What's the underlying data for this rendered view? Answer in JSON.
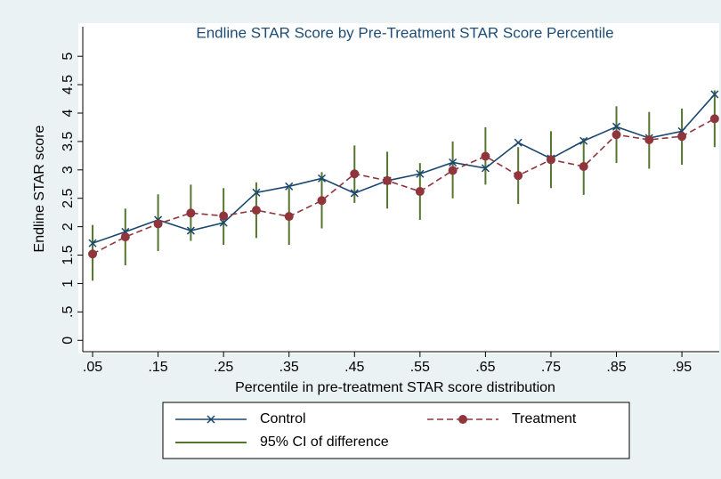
{
  "chart_data": {
    "type": "line",
    "title": "Endline STAR Score by Pre-Treatment STAR Score Percentile",
    "x_label": "Percentile in pre-treatment STAR score distribution",
    "y_label": "Endline STAR score",
    "x": [
      0.05,
      0.1,
      0.15,
      0.2,
      0.25,
      0.3,
      0.35,
      0.4,
      0.45,
      0.5,
      0.55,
      0.6,
      0.65,
      0.7,
      0.75,
      0.8,
      0.85,
      0.9,
      0.95,
      1.0
    ],
    "series": [
      {
        "name": "Control",
        "color": "#1a476f",
        "marker": "x",
        "values": [
          1.71,
          1.91,
          2.12,
          1.93,
          2.07,
          2.6,
          2.71,
          2.85,
          2.59,
          2.81,
          2.93,
          3.13,
          3.03,
          3.48,
          3.2,
          3.51,
          3.76,
          3.56,
          3.68,
          4.33
        ]
      },
      {
        "name": "Treatment",
        "color": "#90353b",
        "marker": "circle",
        "dashed": true,
        "values": [
          1.52,
          1.82,
          2.05,
          2.24,
          2.19,
          2.29,
          2.18,
          2.46,
          2.93,
          2.81,
          2.62,
          2.99,
          3.24,
          2.9,
          3.18,
          3.06,
          3.62,
          3.53,
          3.59,
          3.9
        ]
      },
      {
        "name": "95% CI of difference",
        "color": "#55752f",
        "marker": "range",
        "low": [
          1.05,
          1.32,
          1.57,
          1.75,
          1.68,
          1.8,
          1.68,
          1.97,
          2.42,
          2.32,
          2.12,
          2.5,
          2.74,
          2.4,
          2.68,
          2.56,
          3.12,
          3.02,
          3.09,
          3.4
        ],
        "high": [
          2.03,
          2.32,
          2.57,
          2.74,
          2.68,
          2.78,
          2.68,
          2.96,
          3.43,
          3.32,
          3.12,
          3.5,
          3.75,
          3.4,
          3.68,
          3.56,
          4.12,
          4.02,
          4.08,
          4.4
        ]
      }
    ],
    "xlim": [
      0.035,
      1.007
    ],
    "xticks": [
      {
        "value": 0.05,
        "label": ".05"
      },
      {
        "value": 0.15,
        "label": ".15"
      },
      {
        "value": 0.25,
        "label": ".25"
      },
      {
        "value": 0.35,
        "label": ".35"
      },
      {
        "value": 0.45,
        "label": ".45"
      },
      {
        "value": 0.55,
        "label": ".55"
      },
      {
        "value": 0.65,
        "label": ".65"
      },
      {
        "value": 0.75,
        "label": ".75"
      },
      {
        "value": 0.85,
        "label": ".85"
      },
      {
        "value": 0.95,
        "label": ".95"
      }
    ],
    "ylim": [
      -0.2,
      5.52
    ],
    "yticks": [
      0,
      {
        "value": 0.5,
        "label": ".5"
      },
      1,
      1.5,
      2,
      2.5,
      3,
      3.5,
      4,
      4.5,
      5
    ],
    "grid": false,
    "legend": "bottom"
  }
}
